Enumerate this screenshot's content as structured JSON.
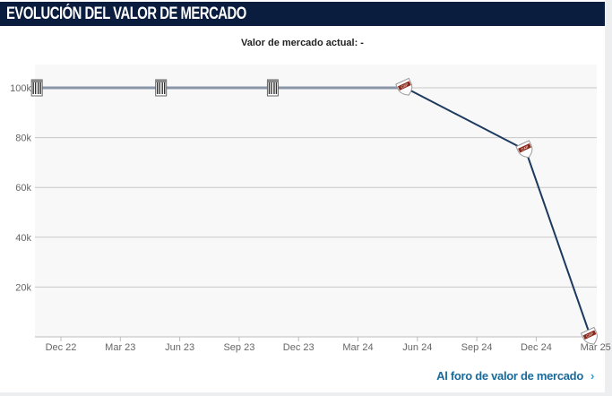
{
  "header": {
    "title": "EVOLUCIÓN DEL VALOR DE MERCADO"
  },
  "subtitle": "Valor de mercado actual: -",
  "forum_link": {
    "label": "Al foro de valor de mercado",
    "icon": "chevron-right-icon"
  },
  "chart_data": {
    "type": "line",
    "title": "",
    "xlabel": "",
    "ylabel": "",
    "x_ticks": [
      "Dec 22",
      "Mar 23",
      "Jun 23",
      "Sep 23",
      "Dec 23",
      "Mar 24",
      "Jun 24",
      "Sep 24",
      "Dec 24",
      "Mar 25"
    ],
    "y_ticks": [
      "20k",
      "40k",
      "60k",
      "80k",
      "100k"
    ],
    "ylim": [
      0,
      110000
    ],
    "grid": true,
    "points": [
      {
        "date": "2022-10-25",
        "value": 100000,
        "club": "Alianza Lima",
        "icon": "alianza-crest"
      },
      {
        "date": "2023-05-04",
        "value": 100000,
        "club": "Alianza Lima",
        "icon": "alianza-crest"
      },
      {
        "date": "2023-10-23",
        "value": 100000,
        "club": "Alianza Lima",
        "icon": "alianza-crest"
      },
      {
        "date": "2024-05-14",
        "value": 100000,
        "club": "Platense",
        "icon": "platense-crest"
      },
      {
        "date": "2024-11-15",
        "value": 75000,
        "club": "Platense",
        "icon": "platense-crest"
      },
      {
        "date": "2025-02-23",
        "value": 0,
        "club": "Platense",
        "icon": "platense-crest"
      }
    ],
    "colors": {
      "line_old": "#8a96a8",
      "line_new": "#1d3a5e",
      "plot_bg": "#f8f8f8",
      "grid": "#c8c8c8"
    }
  }
}
